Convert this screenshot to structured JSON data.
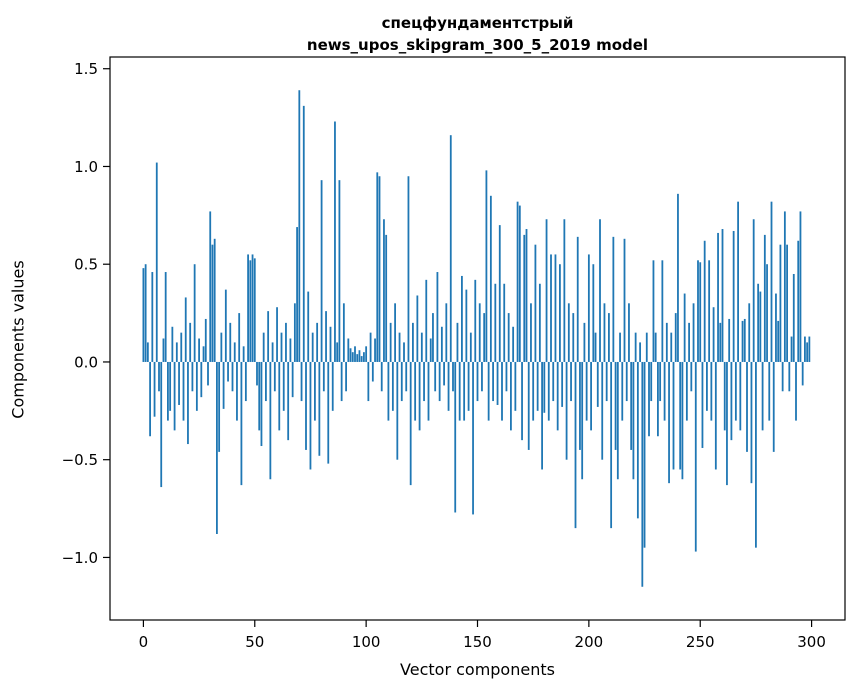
{
  "title": {
    "line1": "спецфундаментстрый",
    "line2": "news_upos_skipgram_300_5_2019 model"
  },
  "chart_data": {
    "type": "bar",
    "title": "спецфундаментстрый\nnews_upos_skipgram_300_5_2019 model",
    "xlabel": "Vector components",
    "ylabel": "Components values",
    "xlim": [
      -15,
      315
    ],
    "ylim": [
      -1.32,
      1.56
    ],
    "x_ticks": [
      0,
      50,
      100,
      150,
      200,
      250,
      300
    ],
    "y_ticks": [
      -1.0,
      -0.5,
      0.0,
      0.5,
      1.0,
      1.5
    ],
    "bar_color": "#1f77b4",
    "grid": false,
    "legend": "none",
    "values": [
      0.48,
      0.5,
      0.1,
      -0.38,
      0.46,
      -0.28,
      1.02,
      -0.15,
      -0.64,
      0.12,
      0.46,
      -0.3,
      -0.25,
      0.18,
      -0.35,
      0.1,
      -0.22,
      0.15,
      -0.3,
      0.33,
      -0.42,
      0.2,
      -0.15,
      0.5,
      -0.25,
      0.12,
      -0.18,
      0.08,
      0.22,
      -0.12,
      0.77,
      0.6,
      0.63,
      -0.88,
      -0.46,
      0.15,
      -0.24,
      0.37,
      -0.1,
      0.2,
      -0.15,
      0.1,
      -0.3,
      0.25,
      -0.63,
      0.08,
      -0.2,
      0.55,
      0.52,
      0.55,
      0.53,
      -0.12,
      -0.35,
      -0.43,
      0.15,
      -0.2,
      0.26,
      -0.6,
      0.1,
      -0.15,
      0.28,
      -0.35,
      0.15,
      -0.25,
      0.2,
      -0.4,
      0.12,
      -0.18,
      0.3,
      0.69,
      1.39,
      -0.2,
      1.31,
      -0.45,
      0.36,
      -0.55,
      0.15,
      -0.3,
      0.2,
      -0.48,
      0.93,
      -0.15,
      0.26,
      -0.52,
      0.18,
      -0.25,
      1.23,
      0.1,
      0.93,
      -0.2,
      0.3,
      -0.15,
      0.12,
      0.07,
      0.05,
      0.08,
      0.04,
      0.06,
      0.03,
      0.05,
      0.08,
      -0.2,
      0.15,
      -0.1,
      0.12,
      0.97,
      0.95,
      -0.15,
      0.73,
      0.65,
      -0.3,
      0.2,
      -0.25,
      0.3,
      -0.5,
      0.15,
      -0.2,
      0.1,
      -0.15,
      0.95,
      -0.63,
      0.2,
      -0.3,
      0.34,
      -0.35,
      0.15,
      -0.2,
      0.42,
      -0.3,
      0.12,
      0.25,
      -0.15,
      0.46,
      -0.2,
      0.18,
      -0.12,
      0.3,
      -0.25,
      1.16,
      -0.15,
      -0.77,
      0.2,
      -0.3,
      0.44,
      -0.3,
      0.37,
      -0.25,
      0.15,
      -0.78,
      0.42,
      -0.2,
      0.3,
      -0.15,
      0.25,
      0.98,
      -0.3,
      0.85,
      -0.2,
      0.4,
      -0.22,
      0.7,
      -0.3,
      0.4,
      -0.15,
      0.25,
      -0.35,
      0.18,
      -0.25,
      0.82,
      0.8,
      -0.4,
      0.65,
      0.68,
      -0.45,
      0.3,
      -0.3,
      0.6,
      -0.25,
      0.4,
      -0.55,
      -0.26,
      0.73,
      -0.3,
      0.55,
      -0.2,
      0.55,
      -0.35,
      0.5,
      -0.23,
      0.73,
      -0.5,
      0.3,
      -0.2,
      0.25,
      -0.85,
      0.64,
      -0.45,
      -0.6,
      0.2,
      -0.3,
      0.55,
      -0.35,
      0.5,
      0.15,
      -0.23,
      0.73,
      -0.5,
      0.3,
      -0.2,
      0.25,
      -0.85,
      0.64,
      -0.45,
      -0.6,
      0.15,
      -0.3,
      0.63,
      -0.2,
      0.3,
      -0.45,
      -0.6,
      0.15,
      -0.8,
      0.1,
      -1.15,
      -0.95,
      0.15,
      -0.38,
      -0.2,
      0.52,
      0.15,
      -0.38,
      -0.2,
      0.52,
      -0.3,
      0.2,
      -0.62,
      0.15,
      -0.55,
      0.25,
      0.86,
      -0.55,
      -0.6,
      0.35,
      -0.3,
      0.2,
      -0.15,
      0.3,
      -0.97,
      0.52,
      0.51,
      -0.44,
      0.62,
      -0.25,
      0.52,
      -0.3,
      0.28,
      -0.55,
      0.66,
      0.2,
      0.68,
      -0.35,
      -0.63,
      0.22,
      -0.4,
      0.67,
      -0.3,
      0.82,
      -0.35,
      0.21,
      0.22,
      -0.46,
      0.3,
      -0.62,
      0.73,
      -0.95,
      0.4,
      0.36,
      -0.35,
      0.65,
      0.5,
      -0.3,
      0.82,
      -0.46,
      0.35,
      0.21,
      0.6,
      -0.15,
      0.77,
      0.6,
      -0.15,
      0.13,
      0.45,
      -0.3,
      0.62,
      0.77,
      -0.12,
      0.13,
      0.1,
      0.13
    ]
  }
}
